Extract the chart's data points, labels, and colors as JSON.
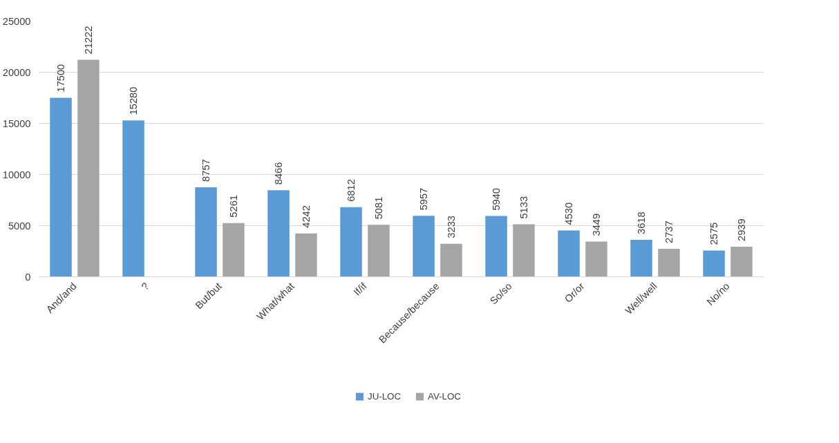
{
  "chart_data": {
    "type": "bar",
    "categories": [
      "And/and",
      "?",
      "But/but",
      "What/what",
      "If/if",
      "Because/because",
      "So/so",
      "Or/or",
      "Well/well",
      "No/no"
    ],
    "series": [
      {
        "name": "JU-LOC",
        "color": "#5b9bd5",
        "values": [
          17500,
          15280,
          8757,
          8466,
          6812,
          5957,
          5940,
          4530,
          3618,
          2575
        ]
      },
      {
        "name": "AV-LOC",
        "color": "#a5a5a5",
        "values": [
          21222,
          null,
          5261,
          4242,
          5081,
          3233,
          5133,
          3449,
          2737,
          2939
        ]
      }
    ],
    "ylim": [
      0,
      25000
    ],
    "yticks": [
      0,
      5000,
      10000,
      15000,
      20000,
      25000
    ],
    "grid": "y",
    "legend": "bottom",
    "data_labels": true
  }
}
